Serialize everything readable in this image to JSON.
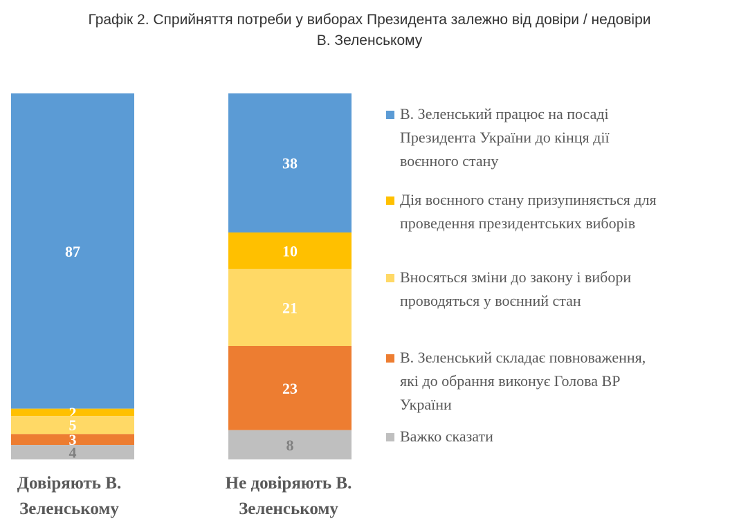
{
  "chart_data": {
    "type": "bar",
    "stacked": true,
    "title": "Графік 2. Сприйняття потреби у виборах Президента залежно від довіри / недовіри В. Зеленському",
    "title_lines": [
      "Графік 2. Сприйняття потреби у виборах Президента залежно від довіри / недовіри",
      "В. Зеленському"
    ],
    "categories": [
      "Довіряють В. Зеленському",
      "Не довіряють В. Зеленському"
    ],
    "category_lines": [
      [
        "Довіряють В.",
        "Зеленському"
      ],
      [
        "Не довіряють В.",
        "Зеленському"
      ]
    ],
    "legend_position": "right",
    "grid": false,
    "series": [
      {
        "name": "В. Зеленський працює на посаді Президента України до кінця дії воєнного стану",
        "lines": [
          "В. Зеленський працює на посаді",
          "Президента України до кінця дії",
          "воєнного стану"
        ],
        "values": [
          87,
          38
        ],
        "color": "#5B9BD5",
        "label_color": "#ffffff"
      },
      {
        "name": "Дія воєнного стану призупиняється для проведення президентських виборів",
        "lines": [
          "Дія воєнного стану призупиняється для",
          "проведення президентських виборів"
        ],
        "values": [
          2,
          10
        ],
        "color": "#FFC000",
        "label_color": "#ffffff"
      },
      {
        "name": "Вносяться зміни до закону і вибори проводяться у воєнний стан",
        "lines": [
          "Вносяться зміни до закону і вибори",
          "проводяться у воєнний стан"
        ],
        "values": [
          5,
          21
        ],
        "color": "#FFD966",
        "label_color": "#ffffff"
      },
      {
        "name": "В. Зеленський складає повноваження, які до обрання виконує Голова ВР України",
        "lines": [
          "В. Зеленський складає повноваження,",
          "які до обрання виконує Голова ВР",
          "України"
        ],
        "values": [
          3,
          23
        ],
        "color": "#ED7D31",
        "label_color": "#ffffff"
      },
      {
        "name": "Важко сказати",
        "lines": [
          "Важко сказати"
        ],
        "values": [
          4,
          8
        ],
        "color": "#BFBFBF",
        "label_color": "#7f7f7f"
      }
    ]
  }
}
